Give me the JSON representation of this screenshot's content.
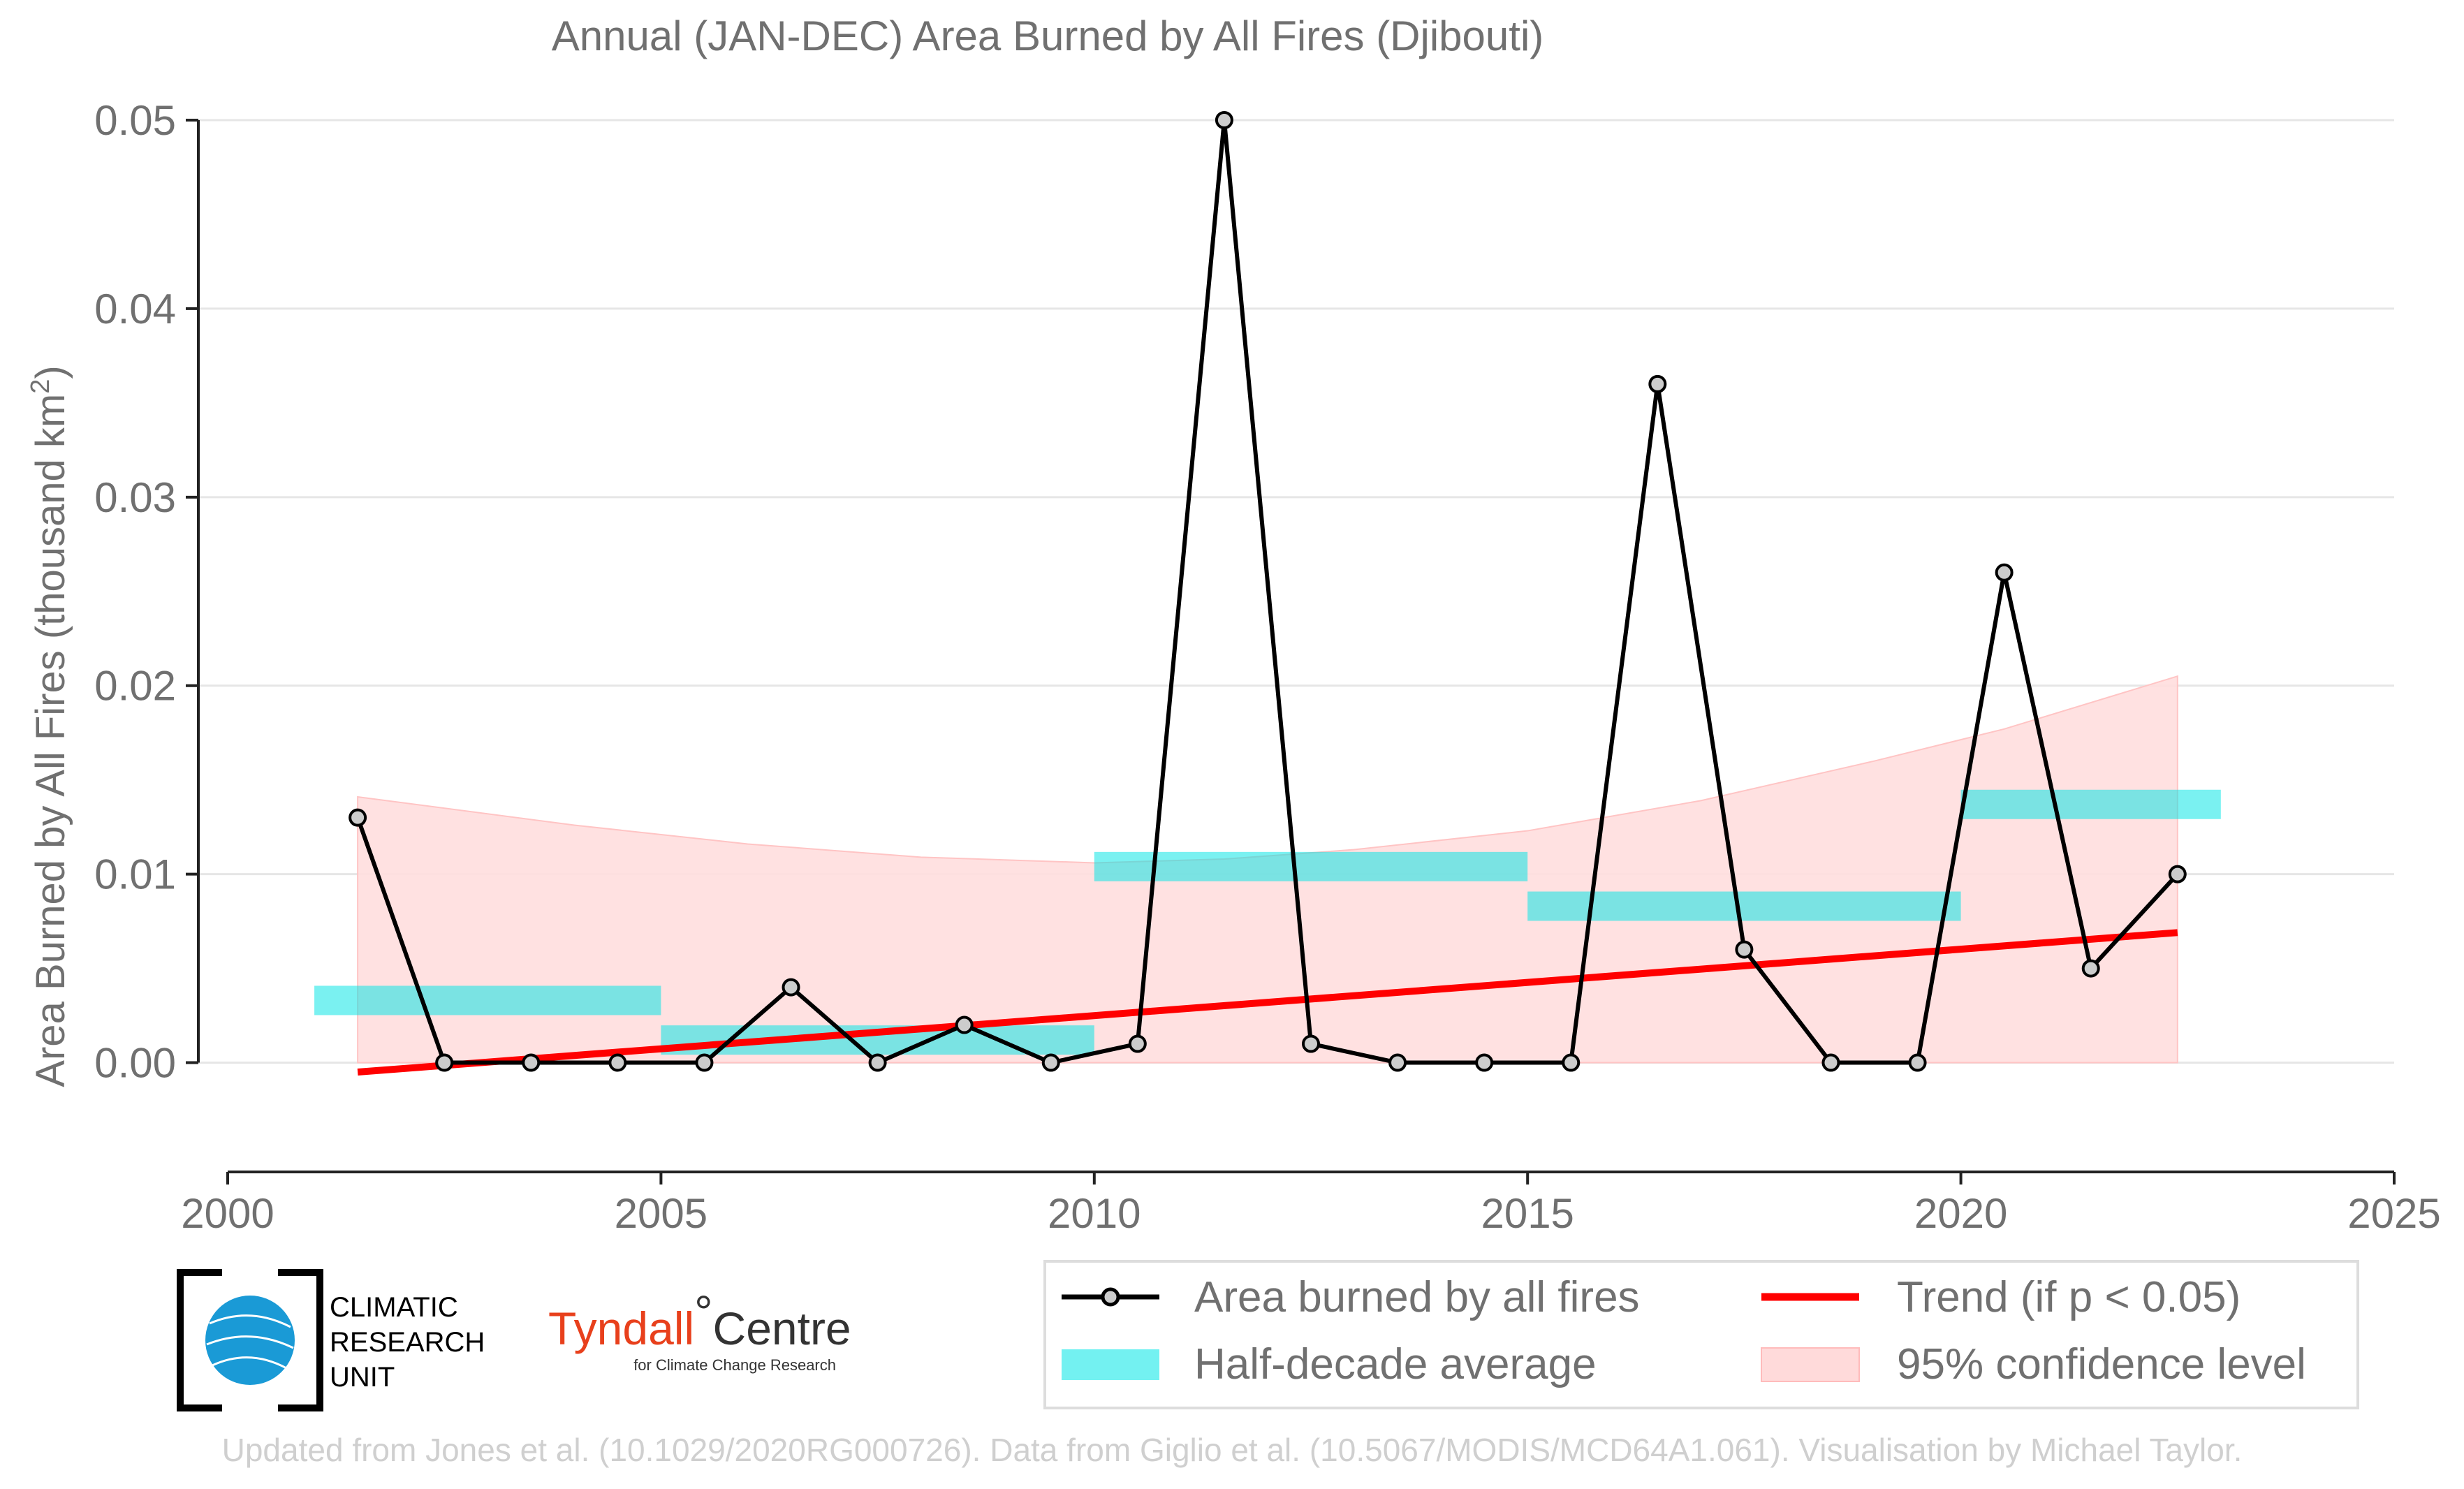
{
  "chart_data": {
    "type": "line",
    "title": "Annual (JAN-DEC) Area Burned by All Fires (Djibouti)",
    "ylabel_main": "Area Burned by All Fires (thousand km",
    "ylabel_sup": "2",
    "ylabel_end": ")",
    "xlim": [
      2000,
      2025
    ],
    "ylim": [
      -0.0045,
      0.05
    ],
    "xticks": [
      2000,
      2005,
      2010,
      2015,
      2020,
      2025
    ],
    "yticks": [
      0.0,
      0.01,
      0.02,
      0.03,
      0.04,
      0.05
    ],
    "ytick_labels": [
      "0.00",
      "0.01",
      "0.02",
      "0.03",
      "0.04",
      "0.05"
    ],
    "grid": true,
    "series": {
      "annual": {
        "name": "Area burned by all fires",
        "color": "#000000",
        "marker_fill": "#cccccc",
        "x": [
          2001.5,
          2002.5,
          2003.5,
          2004.5,
          2005.5,
          2006.5,
          2007.5,
          2008.5,
          2009.5,
          2010.5,
          2011.5,
          2012.5,
          2013.5,
          2014.5,
          2015.5,
          2016.5,
          2017.5,
          2018.5,
          2019.5,
          2020.5,
          2021.5,
          2022.5
        ],
        "y": [
          0.013,
          0.0,
          0.0,
          0.0,
          0.0,
          0.004,
          0.0,
          0.002,
          0.0,
          0.001,
          0.05,
          0.001,
          0.0,
          0.0,
          0.0,
          0.036,
          0.006,
          0.0,
          0.0,
          0.026,
          0.005,
          0.01
        ]
      },
      "half_decade": {
        "name": "Half-decade average",
        "color": "#00e5e5",
        "periods": [
          {
            "x0": 2001,
            "x1": 2005,
            "y": 0.0033
          },
          {
            "x0": 2005,
            "x1": 2010,
            "y": 0.0012
          },
          {
            "x0": 2010,
            "x1": 2015,
            "y": 0.0104
          },
          {
            "x0": 2015,
            "x1": 2020,
            "y": 0.0083
          },
          {
            "x0": 2020,
            "x1": 2023,
            "y": 0.0137
          }
        ]
      },
      "trend": {
        "name": "Trend (if p < 0.05)",
        "color": "#ff0000",
        "x": [
          2001.5,
          2022.5
        ],
        "y": [
          -0.0005,
          0.0069
        ]
      },
      "confidence": {
        "name": "95% confidence level",
        "color": "#ffcccc",
        "x": [
          2001.5,
          2004,
          2006,
          2008,
          2010,
          2011.5,
          2013,
          2015,
          2017,
          2019,
          2020.5,
          2022.5
        ],
        "upper": [
          0.0141,
          0.0126,
          0.0116,
          0.0109,
          0.0106,
          0.0108,
          0.0113,
          0.0123,
          0.0139,
          0.016,
          0.0177,
          0.0205
        ],
        "lower": [
          0,
          0,
          0,
          0,
          0,
          0,
          0,
          0,
          0,
          0,
          0,
          0
        ]
      }
    },
    "legend": {
      "placement": "bottom-right",
      "items": [
        "Area burned by all fires",
        "Trend (if p < 0.05)",
        "Half-decade average",
        "95% confidence level"
      ]
    }
  },
  "logos": {
    "cru": [
      "CLIMATIC",
      "RESEARCH",
      "UNIT"
    ],
    "tyndall_name": "Tyndall",
    "tyndall_degree": "°",
    "tyndall_centre": "Centre",
    "tyndall_sub": "for Climate Change Research"
  },
  "footer": "Updated from Jones et al. (10.1029/2020RG000726). Data from Giglio et al. (10.5067/MODIS/MCD64A1.061). Visualisation by Michael Taylor."
}
